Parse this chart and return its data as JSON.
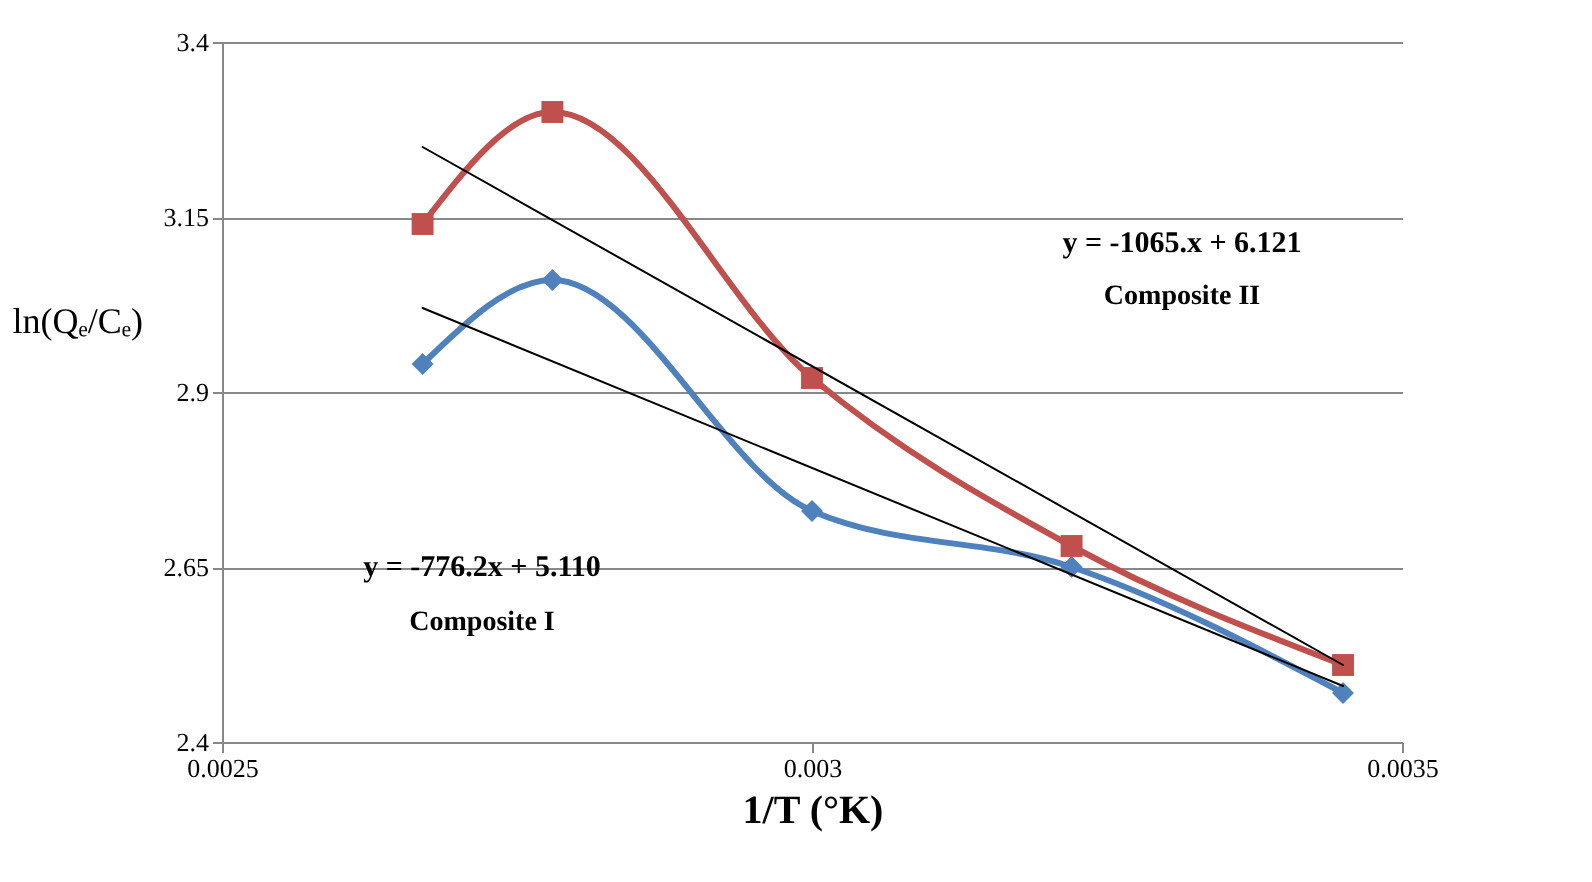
{
  "chart_data": {
    "type": "line",
    "xlabel": "1/T (°K)",
    "ylabel": "ln(Qₑ/Cₑ)",
    "xlim": [
      0.0025,
      0.0035
    ],
    "xticks": [
      0.0025,
      0.003,
      0.0035
    ],
    "ylim": [
      2.4,
      3.4
    ],
    "yticks": [
      2.4,
      2.65,
      2.9,
      3.15,
      3.4
    ],
    "grid": "y",
    "line_style": "solid",
    "series": [
      {
        "color": "#4f81bd",
        "marker": "diamond",
        "x": [
          0.00267,
          0.00278,
          0.003,
          0.00322,
          0.00345
        ],
        "values": [
          2.94,
          3.06,
          2.73,
          2.65,
          2.47
        ]
      },
      {
        "color": "#c0504d",
        "marker": "square",
        "x": [
          0.00267,
          0.00278,
          0.003,
          0.00322,
          0.00345
        ],
        "values": [
          3.14,
          3.3,
          2.92,
          2.68,
          2.51
        ]
      },
      {
        "color": "#000000",
        "marker": "none",
        "x": [
          0.00267,
          0.00345
        ],
        "values": [
          3.02,
          2.48
        ]
      },
      {
        "color": "#000000",
        "marker": "none",
        "x": [
          0.00267,
          0.00345
        ],
        "values": [
          3.25,
          2.51
        ]
      }
    ],
    "annotations": [
      "y = -1065.x + 6.121",
      "Composite II",
      "y = -776.2x + 5.110",
      "Composite I"
    ]
  }
}
